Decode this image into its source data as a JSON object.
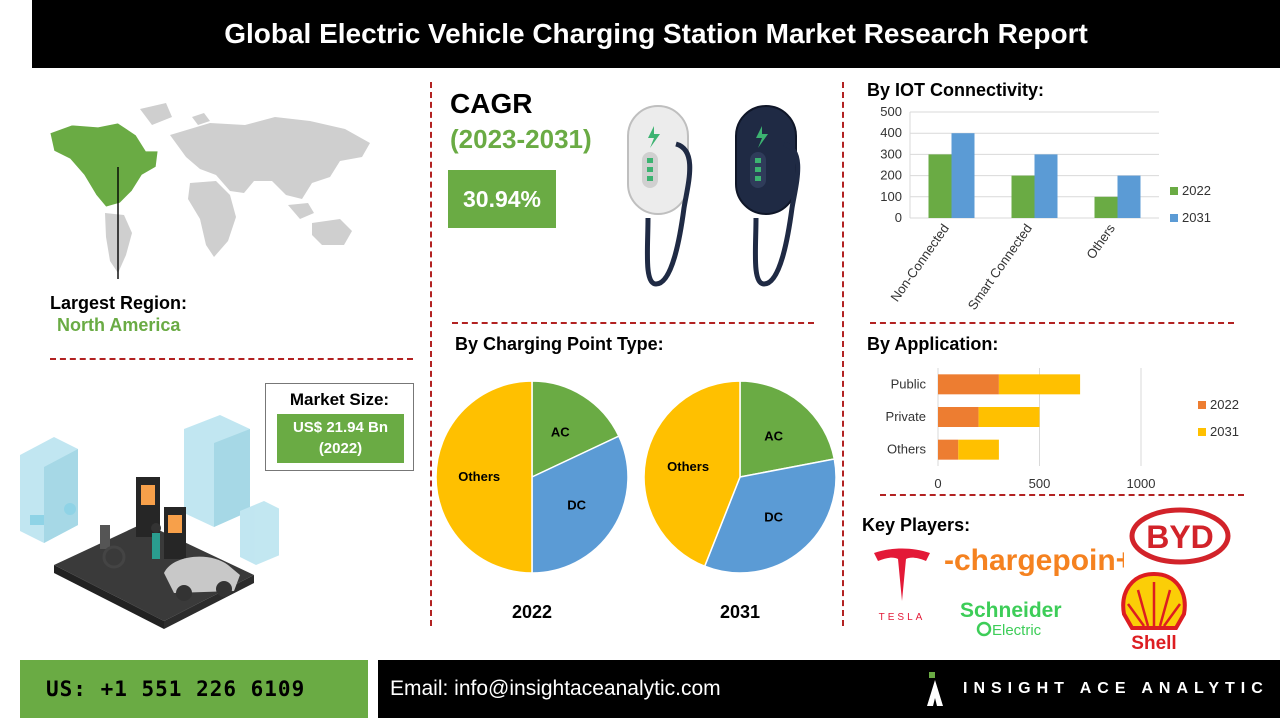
{
  "header": {
    "title": "Global Electric Vehicle Charging Station Market Research Report"
  },
  "region": {
    "label": "Largest Region:",
    "value": "North America"
  },
  "cagr": {
    "title": "CAGR",
    "years": "(2023-2031)",
    "value": "30.94%"
  },
  "market_size": {
    "label": "Market Size:",
    "value_line1": "US$ 21.94 Bn",
    "value_line2": "(2022)"
  },
  "charging_point": {
    "heading": "By Charging Point Type:"
  },
  "iot": {
    "heading": "By IOT Connectivity:"
  },
  "application": {
    "heading": "By Application:"
  },
  "key_players": {
    "heading": "Key Players:",
    "tesla": "TESLA",
    "chargepoint": "-chargepoin+",
    "byd": "BYD",
    "schneider_1": "Schneider",
    "schneider_2": "Electric",
    "shell": "Shell"
  },
  "footer": {
    "phone": "US: +1 551 226 6109",
    "email": "Email: info@insightaceanalytic.com",
    "brand": "INSIGHT ACE ANALYTIC"
  },
  "colors": {
    "green": "#6aab44",
    "blue": "#5b9bd5",
    "yellow": "#ffc000",
    "orange": "#ed7d31",
    "red": "#b22222"
  },
  "chart_data": [
    {
      "type": "pie",
      "title": "2022",
      "slices": [
        {
          "label": "AC",
          "value": 18,
          "color": "#6aab44"
        },
        {
          "label": "DC",
          "value": 32,
          "color": "#5b9bd5"
        },
        {
          "label": "Others",
          "value": 50,
          "color": "#ffc000"
        }
      ]
    },
    {
      "type": "pie",
      "title": "2031",
      "slices": [
        {
          "label": "AC",
          "value": 22,
          "color": "#6aab44"
        },
        {
          "label": "DC",
          "value": 34,
          "color": "#5b9bd5"
        },
        {
          "label": "Others",
          "value": 44,
          "color": "#ffc000"
        }
      ]
    },
    {
      "type": "bar",
      "categories": [
        "Non-Connected",
        "Smart Connected",
        "Others"
      ],
      "series": [
        {
          "name": "2022",
          "values": [
            300,
            200,
            100
          ],
          "color": "#6aab44"
        },
        {
          "name": "2031",
          "values": [
            400,
            300,
            200
          ],
          "color": "#5b9bd5"
        }
      ],
      "ylim": [
        0,
        500
      ],
      "yticks": [
        "0",
        "100",
        "200",
        "300",
        "400",
        "500"
      ],
      "grid": true,
      "legend": "right"
    },
    {
      "type": "bar",
      "orientation": "horizontal",
      "stacked": true,
      "categories": [
        "Public",
        "Private",
        "Others"
      ],
      "series": [
        {
          "name": "2022",
          "values": [
            300,
            200,
            100
          ],
          "color": "#ed7d31"
        },
        {
          "name": "2031",
          "values": [
            400,
            300,
            200
          ],
          "color": "#ffc000"
        }
      ],
      "xlim": [
        0,
        1000
      ],
      "xticks": [
        "0",
        "500",
        "1000"
      ],
      "grid": true,
      "legend": "right"
    }
  ]
}
